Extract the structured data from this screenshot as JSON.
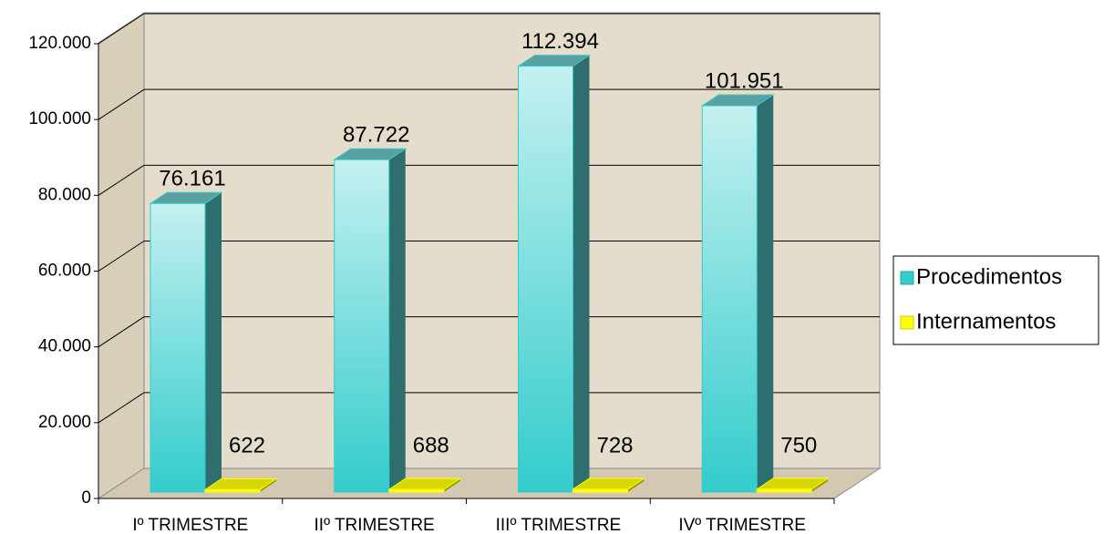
{
  "chart_data": {
    "type": "bar3d",
    "categories": [
      "Iº TRIMESTRE",
      "IIº TRIMESTRE",
      "IIIº TRIMESTRE",
      "IVº TRIMESTRE"
    ],
    "series": [
      {
        "name": "Procedimentos",
        "color": "#33cccc",
        "values": [
          76161,
          87722,
          112394,
          101951
        ],
        "value_labels": [
          "76.161",
          "87.722",
          "112.394",
          "101.951"
        ]
      },
      {
        "name": "Internamentos",
        "color": "#ffff00",
        "values": [
          622,
          688,
          728,
          750
        ]
      }
    ],
    "ylim": [
      0,
      120000
    ],
    "yticks": [
      0,
      {
        "value": 20000,
        "label": "20.000"
      },
      {
        "value": 40000,
        "label": "40.000"
      },
      {
        "value": 60000,
        "label": "60.000"
      },
      {
        "value": 80000,
        "label": "80.000"
      },
      {
        "value": 100000,
        "label": "100.000"
      },
      {
        "value": 120000,
        "label": "120.000"
      }
    ],
    "grid": true,
    "legend": "right"
  }
}
